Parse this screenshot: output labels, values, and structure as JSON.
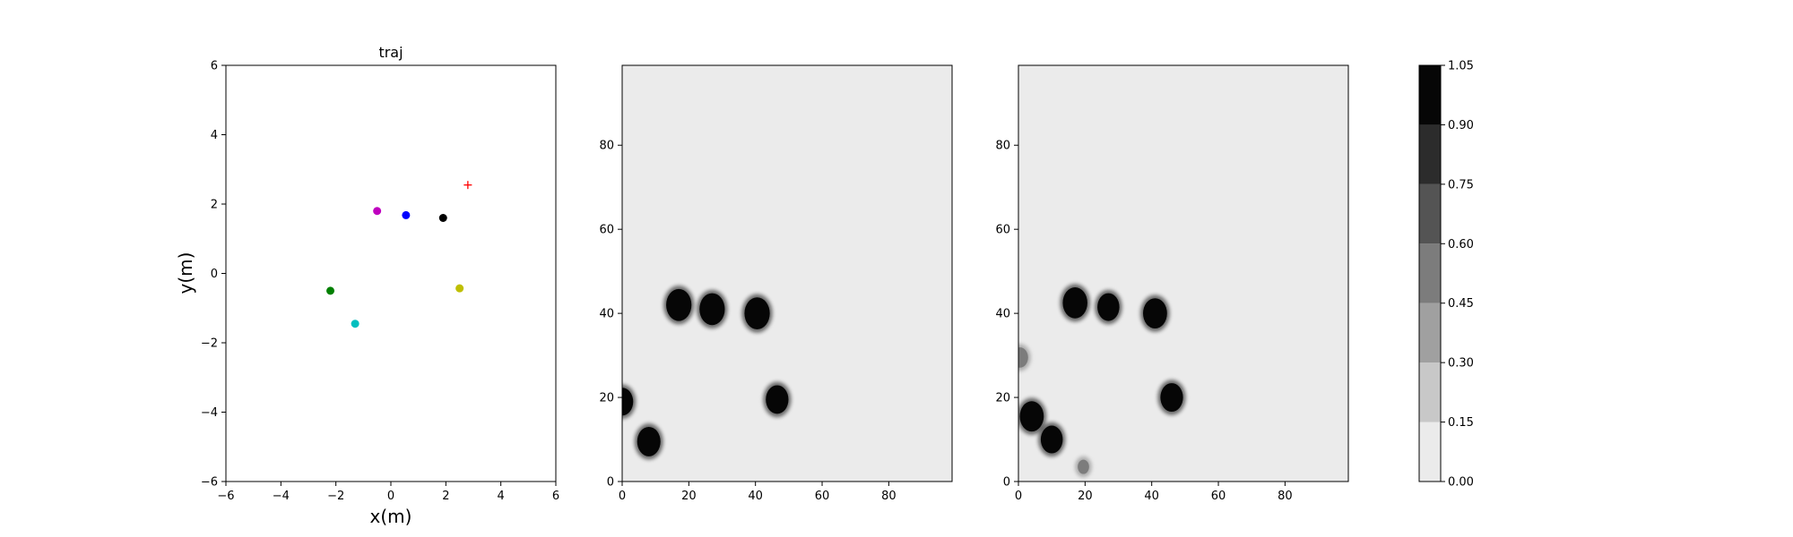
{
  "chart_data": [
    {
      "type": "scatter",
      "title": "traj",
      "xlabel": "x(m)",
      "ylabel": "y(m)",
      "xlim": [
        -6,
        6
      ],
      "ylim": [
        -6,
        6
      ],
      "xticks": [
        -6,
        -4,
        -2,
        0,
        2,
        4,
        6
      ],
      "yticks": [
        -6,
        -4,
        -2,
        0,
        2,
        4,
        6
      ],
      "grid": false,
      "points": [
        {
          "x": 2.8,
          "y": 2.55,
          "color": "#ff0000",
          "marker": "plus"
        },
        {
          "x": -0.5,
          "y": 1.8,
          "color": "#bf00bf",
          "marker": "dot"
        },
        {
          "x": 0.55,
          "y": 1.68,
          "color": "#0000ff",
          "marker": "dot"
        },
        {
          "x": 1.9,
          "y": 1.6,
          "color": "#000000",
          "marker": "dot"
        },
        {
          "x": -2.2,
          "y": -0.5,
          "color": "#008000",
          "marker": "dot"
        },
        {
          "x": 2.5,
          "y": -0.43,
          "color": "#bfbf00",
          "marker": "dot"
        },
        {
          "x": -1.3,
          "y": -1.45,
          "color": "#00bfbf",
          "marker": "dot"
        }
      ]
    },
    {
      "type": "heatmap",
      "title": "",
      "xlim": [
        0,
        99
      ],
      "ylim": [
        0,
        99
      ],
      "xticks": [
        0,
        20,
        40,
        60,
        80
      ],
      "yticks": [
        0,
        20,
        40,
        60,
        80
      ],
      "background_value": 0.05,
      "blobs": [
        {
          "x": 17,
          "y": 42,
          "r": 3.8,
          "value": 1.0
        },
        {
          "x": 27,
          "y": 41,
          "r": 3.8,
          "value": 1.0
        },
        {
          "x": 40.5,
          "y": 40,
          "r": 3.8,
          "value": 1.0
        },
        {
          "x": 46.5,
          "y": 19.5,
          "r": 3.4,
          "value": 1.0
        },
        {
          "x": 8,
          "y": 9.5,
          "r": 3.5,
          "value": 1.0
        },
        {
          "x": 0,
          "y": 19,
          "r": 3.3,
          "value": 1.0
        }
      ]
    },
    {
      "type": "heatmap",
      "title": "",
      "xlim": [
        0,
        99
      ],
      "ylim": [
        0,
        99
      ],
      "xticks": [
        0,
        20,
        40,
        60,
        80
      ],
      "yticks": [
        0,
        20,
        40,
        60,
        80
      ],
      "background_value": 0.05,
      "blobs": [
        {
          "x": 17,
          "y": 42.5,
          "r": 3.7,
          "value": 1.0
        },
        {
          "x": 27,
          "y": 41.5,
          "r": 3.3,
          "value": 1.0
        },
        {
          "x": 41,
          "y": 40,
          "r": 3.6,
          "value": 1.0
        },
        {
          "x": 46,
          "y": 20,
          "r": 3.4,
          "value": 1.0
        },
        {
          "x": 4,
          "y": 15.5,
          "r": 3.6,
          "value": 0.95
        },
        {
          "x": 10,
          "y": 10,
          "r": 3.3,
          "value": 0.95
        },
        {
          "x": 0.5,
          "y": 29.5,
          "r": 2.4,
          "value": 0.5
        },
        {
          "x": 19.5,
          "y": 3.5,
          "r": 1.7,
          "value": 0.5
        }
      ]
    },
    {
      "type": "colorbar",
      "levels": [
        0.0,
        0.15,
        0.3,
        0.45,
        0.6,
        0.75,
        0.9,
        1.05
      ],
      "tick_labels": [
        "0.00",
        "0.15",
        "0.30",
        "0.45",
        "0.60",
        "0.75",
        "0.90",
        "1.05"
      ],
      "colors": [
        "#ebebeb",
        "#c8c8c8",
        "#a0a0a0",
        "#7c7c7c",
        "#545454",
        "#2c2c2c",
        "#060606"
      ]
    }
  ]
}
